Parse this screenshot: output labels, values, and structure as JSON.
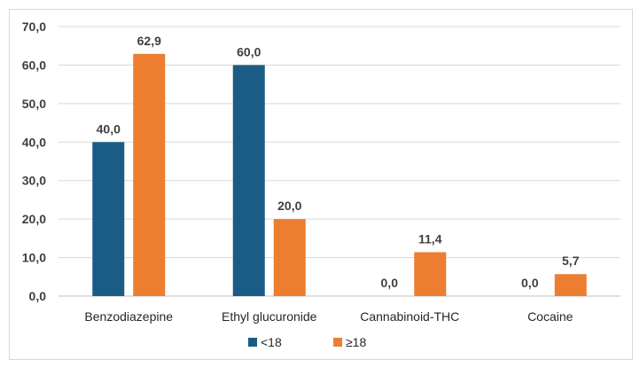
{
  "chart_data": {
    "type": "bar",
    "categories": [
      "Benzodiazepine",
      "Ethyl glucuronide",
      "Cannabinoid-THC",
      "Cocaine"
    ],
    "series": [
      {
        "name": "<18",
        "color": "#1a5c85",
        "values": [
          40.0,
          60.0,
          0.0,
          0.0
        ]
      },
      {
        "name": "≥18",
        "color": "#ed7d31",
        "values": [
          62.9,
          20.0,
          11.4,
          5.7
        ]
      }
    ],
    "ylim": [
      0,
      70
    ],
    "yticks": [
      0,
      10,
      20,
      30,
      40,
      50,
      60,
      70
    ],
    "tick_format": "comma-1-decimal",
    "grid": true,
    "legend_position": "bottom"
  }
}
